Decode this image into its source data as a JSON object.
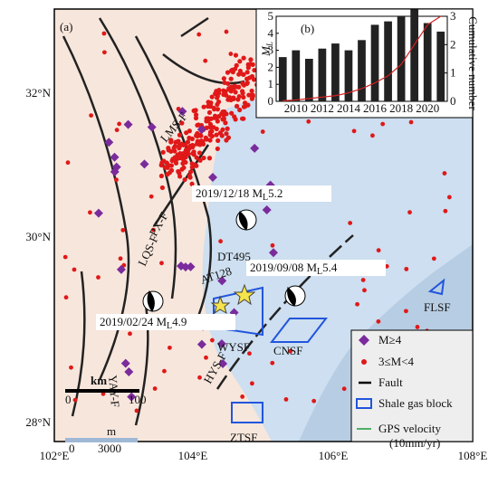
{
  "panel_a": "(a)",
  "panel_b": "(b)",
  "lon_ticks": [
    "102°E",
    "104°E",
    "106°E",
    "108°E"
  ],
  "lat_ticks": [
    "32°N",
    "30°N",
    "28°N"
  ],
  "events": [
    {
      "date": "2019/12/18 ",
      "m": "M",
      "sub": "L",
      "value": "5.2"
    },
    {
      "date": "2019/09/08 ",
      "m": "M",
      "sub": "L",
      "value": "5.4"
    },
    {
      "date": "2019/02/24 ",
      "m": "M",
      "sub": "L",
      "value": "4.9"
    }
  ],
  "faults": [
    "LMS-F",
    "PX-F",
    "LQS-F",
    "YAY-F",
    "HYS-F"
  ],
  "tracks": [
    "DT495",
    "AT128"
  ],
  "blocks": [
    "WYSF",
    "CNSF",
    "FLSF",
    "ZTSF"
  ],
  "scale": {
    "unit": "km",
    "start": "0",
    "end": "100"
  },
  "elevation": {
    "unit": "m",
    "start": "0",
    "end": "3000"
  },
  "legend": [
    "M≥4",
    "3≤M<4",
    "Fault",
    "Shale gas block",
    "GPS velocity",
    "(10mm/yr)"
  ],
  "inset": {
    "type": "bar",
    "y_label": {
      "m": "M",
      "sub": "L"
    },
    "y2_label": "Cumulative number",
    "xticks": [
      2010,
      2012,
      2014,
      2016,
      2018,
      2020
    ],
    "xlim": [
      2008.5,
      2021.5
    ],
    "ylim": [
      0,
      5
    ],
    "yticks": [
      0,
      1,
      2,
      3,
      4,
      5
    ],
    "y2lim": [
      0,
      3
    ],
    "y2ticks": [
      0,
      1,
      2,
      3
    ],
    "x": [
      2009,
      2010,
      2011,
      2012,
      2013,
      2014,
      2015,
      2016,
      2017,
      2018,
      2019,
      2020,
      2021
    ],
    "series": [
      {
        "color": "#222222",
        "values": [
          2.6,
          3.0,
          2.5,
          3.1,
          3.4,
          3.0,
          3.6,
          4.5,
          4.7,
          5.0,
          5.4,
          4.6,
          4.1
        ]
      },
      {
        "axis": "y2",
        "color": "#d62020",
        "values": [
          0.02,
          0.05,
          0.1,
          0.15,
          0.2,
          0.3,
          0.45,
          0.65,
          0.9,
          1.3,
          2.0,
          2.7,
          3.0
        ]
      }
    ]
  }
}
